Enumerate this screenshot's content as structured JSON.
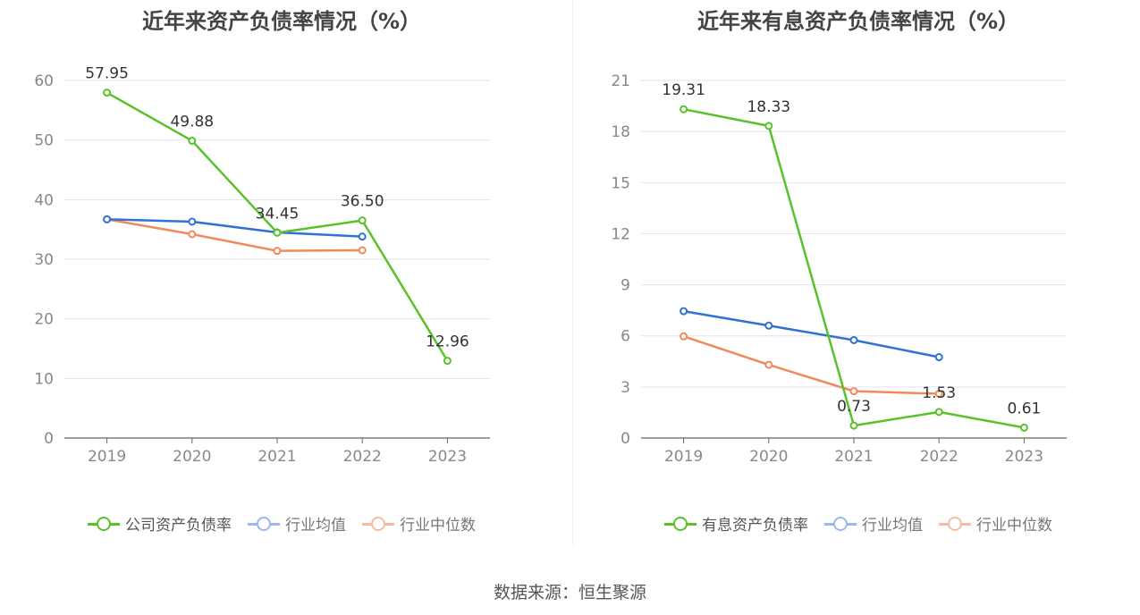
{
  "source": "数据来源：恒生聚源",
  "colors": {
    "company": "#5ac229",
    "average": "#3370d4",
    "median": "#ef8a5a",
    "average_faded": "#9bb8e8",
    "median_faded": "#f5bca0",
    "grid": "#e0e3f0",
    "axis": "#666666",
    "tick": "#888888",
    "label": "#333333"
  },
  "chart_data": [
    {
      "type": "line",
      "title": "近年来资产负债率情况（%）",
      "x": [
        "2019",
        "2020",
        "2021",
        "2022",
        "2023"
      ],
      "yticks": [
        "0",
        "10",
        "20",
        "30",
        "40",
        "50",
        "60"
      ],
      "ylim": [
        0,
        60
      ],
      "grid": true,
      "legend": "bottom",
      "series": [
        {
          "name": "公司资产负债率",
          "key": "company",
          "values": [
            57.95,
            49.88,
            34.45,
            36.5,
            12.96
          ],
          "labels": [
            "57.95",
            "49.88",
            "34.45",
            "36.50",
            "12.96"
          ]
        },
        {
          "name": "行业均值",
          "key": "average",
          "values": [
            36.7,
            36.3,
            34.5,
            33.8,
            null
          ]
        },
        {
          "name": "行业中位数",
          "key": "median",
          "values": [
            36.7,
            34.2,
            31.4,
            31.5,
            null
          ]
        }
      ]
    },
    {
      "type": "line",
      "title": "近年来有息资产负债率情况（%）",
      "x": [
        "2019",
        "2020",
        "2021",
        "2022",
        "2023"
      ],
      "yticks": [
        "0",
        "3",
        "6",
        "9",
        "12",
        "15",
        "18",
        "21"
      ],
      "ylim": [
        0,
        21
      ],
      "grid": true,
      "legend": "bottom",
      "series": [
        {
          "name": "有息资产负债率",
          "key": "company",
          "values": [
            19.31,
            18.33,
            0.73,
            1.53,
            0.61
          ],
          "labels": [
            "19.31",
            "18.33",
            "0.73",
            "1.53",
            "0.61"
          ]
        },
        {
          "name": "行业均值",
          "key": "average",
          "values": [
            7.45,
            6.6,
            5.75,
            4.75,
            null
          ]
        },
        {
          "name": "行业中位数",
          "key": "median",
          "values": [
            5.97,
            4.3,
            2.75,
            2.6,
            null
          ]
        }
      ]
    }
  ]
}
